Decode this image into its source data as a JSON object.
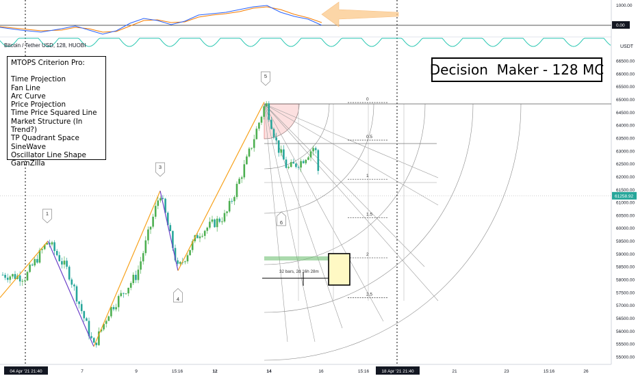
{
  "symbol_label": "Bitcoin / Tether USD, 128, HUOBI",
  "criteria_box": {
    "title": "MTOPS Criterion Pro:",
    "items": [
      "Time Projection",
      "Fan Line",
      "Arc Curve",
      "Price Projection",
      "Time Price Squared Line",
      "Market Structure (In Trend?)",
      "TP Quadrant Space",
      "SineWave",
      "Oscillator Line Shape",
      "GannZilla"
    ]
  },
  "decision_label": "Decision  Maker - 128 MC",
  "currency_label": "USDT",
  "colors": {
    "up_candle": "#4caf50",
    "down_candle": "#26a69a",
    "orange_line": "#f7a11a",
    "purple_line": "#6a3fc8",
    "price_tag": "#26a69a",
    "indicator_blue": "#2962ff",
    "indicator_orange": "#f57c00",
    "sine_wave": "#26c6b0",
    "green_zone": "#66bb6a",
    "yellow_box": "#fff9c4"
  },
  "chart_data": {
    "type": "candlestick",
    "ylim": [
      55000,
      66800
    ],
    "y_ticks": [
      "55000.00",
      "55500.00",
      "56000.00",
      "56500.00",
      "57000.00",
      "57500.00",
      "58000.00",
      "58500.00",
      "59000.00",
      "59500.00",
      "60000.00",
      "60500.00",
      "61000.00",
      "61500.00",
      "62000.00",
      "62500.00",
      "63000.00",
      "63500.00",
      "64000.00",
      "64500.00",
      "65000.00",
      "65500.00",
      "66000.00",
      "66500.00"
    ],
    "x_ticks": [
      "04 Apr '21  21:40",
      "7",
      "9",
      "15:16",
      "12",
      "14",
      "16",
      "15:16",
      "18 Apr '21  21:40",
      "21",
      "23",
      "15:16",
      "26"
    ],
    "current_price": "61258.92",
    "indicator": {
      "ylim": [
        -200,
        1200
      ],
      "y_ticks": [
        "1000.00"
      ],
      "current_value": "0.00"
    },
    "wave_labels": [
      {
        "label": "1",
        "price": 59500
      },
      {
        "label": "2",
        "price": 55400
      },
      {
        "label": "3",
        "price": 61450
      },
      {
        "label": "4",
        "price": 58350
      },
      {
        "label": "5",
        "price": 64900
      },
      {
        "label": "6",
        "price": 61200
      }
    ],
    "fib_levels": [
      {
        "label": "0",
        "price": 64880
      },
      {
        "label": "0.5",
        "price": 63420
      },
      {
        "label": "1",
        "price": 61900
      },
      {
        "label": "1.5",
        "price": 60400
      },
      {
        "label": "2",
        "price": 58850
      },
      {
        "label": "2.5",
        "price": 57300
      }
    ],
    "measure_label": "32 bars, 2d 16h 28m"
  }
}
